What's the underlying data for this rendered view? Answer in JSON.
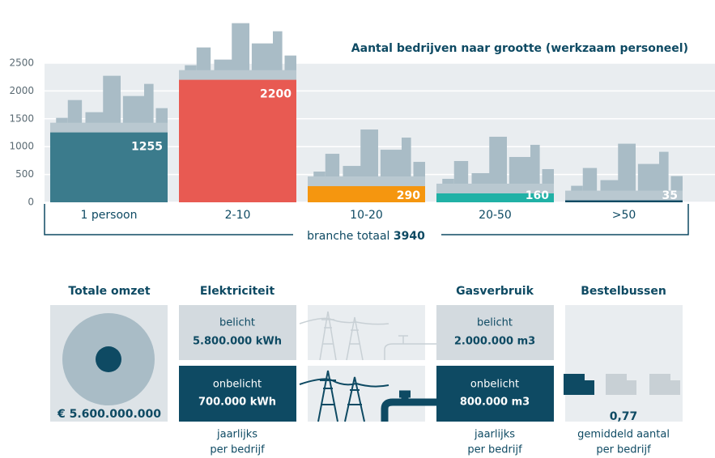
{
  "chart_data": {
    "type": "bar",
    "title": "Aantal bedrijven naar grootte (werkzaam personeel)",
    "categories": [
      "1 persoon",
      "2-10",
      "10-20",
      "20-50",
      ">50"
    ],
    "values": [
      1255,
      2200,
      290,
      160,
      35
    ],
    "colors": [
      "#3b7b8c",
      "#e85a52",
      "#f5960f",
      "#20b1a6",
      "#0e4a63"
    ],
    "ylim": [
      0,
      2500
    ],
    "yticks": [
      0,
      500,
      1000,
      1500,
      2000,
      2500
    ],
    "grid": true,
    "total_label": "branche totaal",
    "total": 3940
  },
  "panels": [
    {
      "title": "Totale omzet",
      "value": "€ 5.600.000.000"
    },
    {
      "title": "Elektriciteit",
      "lit_label": "belicht",
      "lit_value": "5.800.000 kWh",
      "unlit_label": "onbelicht",
      "unlit_value": "700.000 kWh",
      "note": [
        "jaarlijks",
        "per bedrijf"
      ]
    },
    {
      "title": "Gasverbruik",
      "lit_label": "belicht",
      "lit_value": "2.000.000 m3",
      "unlit_label": "onbelicht",
      "unlit_value": "800.000 m3",
      "note": [
        "jaarlijks",
        "per bedrijf"
      ]
    },
    {
      "title": "Bestelbussen",
      "value": "0,77",
      "note": [
        "gemiddeld aantal",
        "per bedrijf"
      ]
    }
  ]
}
